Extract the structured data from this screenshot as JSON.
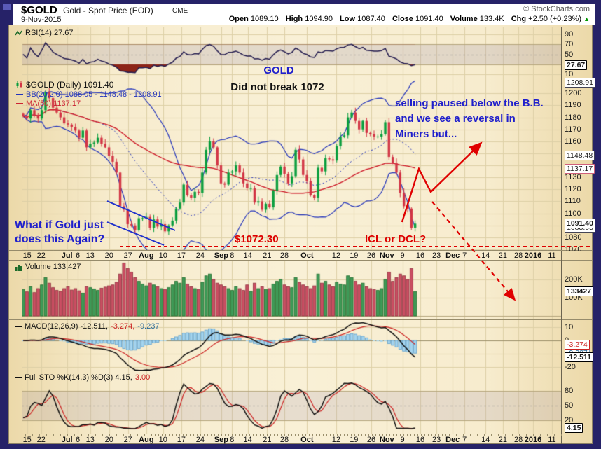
{
  "header": {
    "symbol": "$GOLD",
    "name": "Gold - Spot Price (EOD)",
    "exchange": "CME",
    "date": "9-Nov-2015",
    "copyright": "© StockCharts.com",
    "q": {
      "open": {
        "l": "Open",
        "v": "1089.10"
      },
      "high": {
        "l": "High",
        "v": "1094.90"
      },
      "low": {
        "l": "Low",
        "v": "1087.40"
      },
      "close": {
        "l": "Close",
        "v": "1091.40"
      },
      "volume": {
        "l": "Volume",
        "v": "133.4K"
      },
      "chg": {
        "l": "Chg",
        "v": "+2.50 (+0.23%)"
      }
    },
    "chg_arrow": "▲"
  },
  "rsi": {
    "legend": "RSI(14) 27.67",
    "ticks": [
      [
        90,
        "90"
      ],
      [
        70,
        "70"
      ],
      [
        50,
        "50"
      ],
      [
        10,
        "10"
      ]
    ],
    "callout": "27.67"
  },
  "price": {
    "legend_symbol": "$GOLD (Daily) 1091.40",
    "legend_bb": "BB(20,2.0) 1088.05 - 1148.48 - 1208.91",
    "legend_ma": "MA(50) 1137.17",
    "ticks": [
      [
        1200,
        "1200"
      ],
      [
        1190,
        "1190"
      ],
      [
        1180,
        "1180"
      ],
      [
        1170,
        "1170"
      ],
      [
        1160,
        "1160"
      ],
      [
        1130,
        "1130"
      ],
      [
        1120,
        "1120"
      ],
      [
        1110,
        "1110"
      ],
      [
        1100,
        "1100"
      ],
      [
        1080,
        "1080"
      ],
      [
        1070,
        "1070"
      ]
    ],
    "callouts": [
      {
        "v": 1208.91,
        "t": "1208.91",
        "c": "co-bb"
      },
      {
        "v": 1148.48,
        "t": "1148.48",
        "c": "co-bb"
      },
      {
        "v": 1137.17,
        "t": "1137.17",
        "c": "co-ma"
      },
      {
        "v": 1088.05,
        "t": "1088.05",
        "c": "co-bb"
      },
      {
        "v": 1091.4,
        "t": "1091.40",
        "c": "co-c"
      }
    ]
  },
  "volume": {
    "legend": "Volume 133,427",
    "ticks": [
      [
        200,
        "200K"
      ],
      [
        100,
        "100K"
      ]
    ],
    "callout": "133427"
  },
  "macd": {
    "l1": "MACD(12,26,9) -12.511,",
    "l2": "-3.274,",
    "l3": "-9.237",
    "ticks": [
      [
        10,
        "10"
      ],
      [
        0,
        "0"
      ],
      [
        -20,
        "-20"
      ]
    ],
    "callouts": [
      {
        "v": -3.274,
        "t": "-3.274",
        "c": "co-r"
      },
      {
        "v": -9.237,
        "t": "-9.237",
        "c": "co-bl"
      },
      {
        "v": -12.511,
        "t": "-12.511",
        "c": "co-c"
      }
    ]
  },
  "sto": {
    "l1": "Full STO %K(14,3) %D(3) 4.15,",
    "l2": "3.00",
    "ticks": [
      [
        80,
        "80"
      ],
      [
        50,
        "50"
      ],
      [
        20,
        "20"
      ]
    ],
    "callout": "4.15"
  },
  "annotations": {
    "gold": "GOLD",
    "no_break": "Did not break 1072",
    "selling": "selling paused below the B.B.\nand we see a reversal in\nMiners but...",
    "what_if": "What if Gold just\ndoes this Again?",
    "level": "$1072.30",
    "icl": "ICL or DCL?"
  },
  "chart_data": {
    "type": "candlestick",
    "symbol": "$GOLD Gold - Spot Price (EOD) CME",
    "timeframe": "daily",
    "date_range": "Jun 2015 - 9 Nov 2015 plotted; x axis extends blank to 11 Jan 2016",
    "title": "GOLD Did not break 1072",
    "price_ylim": [
      1070,
      1210
    ],
    "rsi_ylim": [
      0,
      100
    ],
    "volume_ylim": [
      0,
      300
    ],
    "macd_ylim": [
      -22,
      12
    ],
    "sto_ylim": [
      0,
      100
    ],
    "last_values": {
      "close": 1091.4,
      "rsi14": 27.67,
      "bb_lower": 1088.05,
      "bb_mid": 1148.48,
      "bb_upper": 1208.91,
      "ma50": 1137.17,
      "volume": 133427,
      "macd": -12.511,
      "macd_signal": -3.274,
      "macd_hist": -9.237,
      "sto_k": 4.15,
      "sto_d": 3.0
    },
    "close": [
      1181,
      1179,
      1186,
      1182,
      1179,
      1186,
      1201,
      1196,
      1188,
      1184,
      1180,
      1175,
      1174,
      1172,
      1169,
      1163,
      1169,
      1155,
      1158,
      1159,
      1163,
      1158,
      1155,
      1148,
      1143,
      1134,
      1106,
      1103,
      1091,
      1090,
      1086,
      1096,
      1096,
      1097,
      1088,
      1095,
      1089,
      1091,
      1085,
      1090,
      1094,
      1104,
      1109,
      1124,
      1115,
      1113,
      1118,
      1117,
      1134,
      1153,
      1160,
      1155,
      1140,
      1125,
      1124,
      1134,
      1135,
      1140,
      1134,
      1125,
      1121,
      1121,
      1109,
      1110,
      1103,
      1108,
      1105,
      1119,
      1132,
      1139,
      1133,
      1125,
      1131,
      1153,
      1145,
      1132,
      1127,
      1115,
      1113,
      1138,
      1135,
      1146,
      1145,
      1144,
      1156,
      1164,
      1165,
      1180,
      1184,
      1177,
      1170,
      1177,
      1167,
      1166,
      1164,
      1164,
      1166,
      1176,
      1147,
      1142,
      1134,
      1117,
      1106,
      1104,
      1088,
      1091.4
    ],
    "volume_k": [
      145,
      132,
      160,
      128,
      150,
      170,
      210,
      180,
      155,
      140,
      135,
      150,
      160,
      142,
      150,
      138,
      125,
      160,
      155,
      148,
      140,
      152,
      158,
      165,
      170,
      185,
      230,
      290,
      260,
      240,
      210,
      190,
      175,
      165,
      180,
      170,
      160,
      150,
      145,
      155,
      170,
      190,
      180,
      210,
      175,
      160,
      150,
      145,
      185,
      220,
      230,
      200,
      180,
      170,
      160,
      150,
      140,
      160,
      150,
      140,
      170,
      135,
      180,
      150,
      160,
      145,
      150,
      175,
      190,
      200,
      170,
      160,
      155,
      210,
      185,
      170,
      160,
      150,
      165,
      230,
      180,
      190,
      170,
      160,
      185,
      175,
      170,
      220,
      210,
      190,
      170,
      180,
      160,
      150,
      145,
      140,
      150,
      200,
      240,
      190,
      210,
      230,
      220,
      200,
      260,
      133.4
    ],
    "xticks": [
      [
        "15",
        0.01,
        0
      ],
      [
        "22",
        0.036,
        0
      ],
      [
        "Jul",
        0.084,
        1
      ],
      [
        "6",
        0.104,
        0
      ],
      [
        "13",
        0.127,
        0
      ],
      [
        "20",
        0.162,
        0
      ],
      [
        "27",
        0.197,
        0
      ],
      [
        "Aug",
        0.231,
        1
      ],
      [
        "10",
        0.262,
        0
      ],
      [
        "17",
        0.296,
        0
      ],
      [
        "24",
        0.331,
        0
      ],
      [
        "Sep",
        0.37,
        1
      ],
      [
        "8",
        0.39,
        0
      ],
      [
        "14",
        0.419,
        0
      ],
      [
        "21",
        0.455,
        0
      ],
      [
        "28",
        0.487,
        0
      ],
      [
        "Oct",
        0.529,
        1
      ],
      [
        "12",
        0.583,
        0
      ],
      [
        "19",
        0.616,
        0
      ],
      [
        "26",
        0.648,
        0
      ],
      [
        "Nov",
        0.677,
        1
      ],
      [
        "9",
        0.706,
        0
      ],
      [
        "16",
        0.739,
        0
      ],
      [
        "23",
        0.769,
        0
      ],
      [
        "Dec",
        0.799,
        1
      ],
      [
        "7",
        0.821,
        0
      ],
      [
        "14",
        0.86,
        0
      ],
      [
        "21",
        0.892,
        0
      ],
      [
        "28",
        0.921,
        0
      ],
      [
        "2016",
        0.948,
        1
      ],
      [
        "11",
        0.983,
        0
      ]
    ],
    "indicators": [
      "RSI(14)",
      "BB(20,2.0)",
      "MA(50)",
      "Volume",
      "MACD(12,26,9)",
      "Full STO %K(14,3) %D(3)"
    ]
  }
}
